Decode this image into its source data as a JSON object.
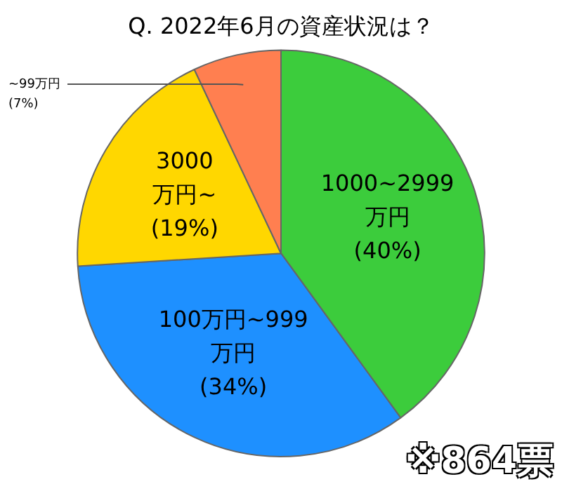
{
  "chart_data": {
    "type": "pie",
    "title": "Q. 2022年6月の資産状況は？",
    "categories": [
      "1000~2999\n万円",
      "100万円~999\n万円",
      "3000\n万円~",
      "~99万円"
    ],
    "values": [
      40,
      34,
      19,
      7
    ],
    "value_labels": [
      "(40%)",
      "(34%)",
      "(19%)",
      "(7%)"
    ],
    "colors": [
      "#3ccc3c",
      "#1e90ff",
      "#ffd700",
      "#ff7f50"
    ],
    "legend": false,
    "annotations": [
      "※864票"
    ]
  }
}
